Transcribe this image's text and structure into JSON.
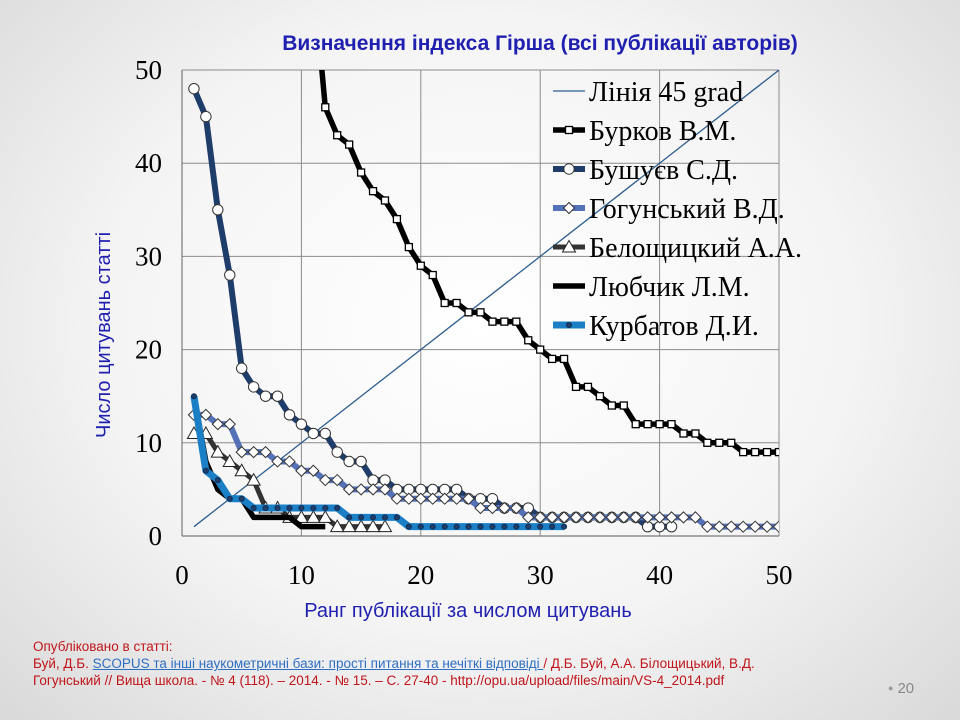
{
  "slide": {
    "page_number": "20",
    "footer": {
      "line1": "Опубліковано   в статті:",
      "line2_pre": "Буй, Д.Б. ",
      "line2_link": "SCOPUS та інші  наукометричні  бази:  прості питання  та нечіткі  відповіді ",
      "line2_post": "  /  Д.Б. Буй, А.А. Білощицький,   В.Д.",
      "line3": "Гогунський  // Вища  школа.  - № 4 (118). – 2014. - № 15. – С. 27-40 - http://opu.ua/upload/files/main/VS-4_2014.pdf"
    }
  },
  "chart_data": {
    "type": "line",
    "title": "Визначення індекса Гірша   (всі публікації авторів)",
    "xlabel": "Ранг публікації за числом цитувань",
    "ylabel": "Число цитувань статті",
    "xlim": [
      0,
      50
    ],
    "ylim": [
      0,
      50
    ],
    "xticks": [
      0,
      10,
      20,
      30,
      40,
      50
    ],
    "yticks": [
      0,
      10,
      20,
      30,
      40,
      50
    ],
    "grid": true,
    "legend_position": "top-right",
    "series": [
      {
        "name": "Лінія 45 grad",
        "color": "#2e5e8e",
        "width": 1.3,
        "marker": "none",
        "x": [
          1,
          50
        ],
        "y": [
          1,
          50
        ]
      },
      {
        "name": "Бурков В.М.",
        "color": "#000000",
        "width": 5.5,
        "marker": "square",
        "marker_fill": "#ffffff",
        "x": [
          11,
          12,
          13,
          14,
          15,
          16,
          17,
          18,
          19,
          20,
          21,
          22,
          23,
          24,
          25,
          26,
          27,
          28,
          29,
          30,
          31,
          32,
          33,
          34,
          35,
          36,
          37,
          38,
          39,
          40,
          41,
          42,
          43,
          44,
          45,
          46,
          47,
          48,
          49,
          50
        ],
        "y": [
          60,
          46,
          43,
          42,
          39,
          37,
          36,
          34,
          31,
          29,
          28,
          25,
          25,
          24,
          24,
          23,
          23,
          23,
          21,
          20,
          19,
          19,
          16,
          16,
          15,
          14,
          14,
          12,
          12,
          12,
          12,
          11,
          11,
          10,
          10,
          10,
          9,
          9,
          9,
          9
        ]
      },
      {
        "name": "Бушуєв С.Д.",
        "color": "#1f3d6b",
        "width": 6,
        "marker": "circle",
        "marker_fill": "#ffffff",
        "x": [
          1,
          2,
          3,
          4,
          5,
          6,
          7,
          8,
          9,
          10,
          11,
          12,
          13,
          14,
          15,
          16,
          17,
          18,
          19,
          20,
          21,
          22,
          23,
          24,
          25,
          26,
          27,
          28,
          29,
          30,
          31,
          32,
          33,
          34,
          35,
          36,
          37,
          38,
          39,
          40,
          41
        ],
        "y": [
          48,
          45,
          35,
          28,
          18,
          16,
          15,
          15,
          13,
          12,
          11,
          11,
          9,
          8,
          8,
          6,
          6,
          5,
          5,
          5,
          5,
          5,
          5,
          4,
          4,
          4,
          3,
          3,
          3,
          2,
          2,
          2,
          2,
          2,
          2,
          2,
          2,
          2,
          1,
          1,
          1
        ]
      },
      {
        "name": "Гогунський В.Д.",
        "color": "#5572b8",
        "width": 6,
        "marker": "diamond",
        "marker_fill": "#ffffff",
        "x": [
          1,
          2,
          3,
          4,
          5,
          6,
          7,
          8,
          9,
          10,
          11,
          12,
          13,
          14,
          15,
          16,
          17,
          18,
          19,
          20,
          21,
          22,
          23,
          24,
          25,
          26,
          27,
          28,
          29,
          30,
          31,
          32,
          33,
          34,
          35,
          36,
          37,
          38,
          39,
          40,
          41,
          42,
          43,
          44,
          45,
          46,
          47,
          48,
          49,
          50
        ],
        "y": [
          13,
          13,
          12,
          12,
          9,
          9,
          9,
          8,
          8,
          7,
          7,
          6,
          6,
          5,
          5,
          5,
          5,
          4,
          4,
          4,
          4,
          4,
          4,
          4,
          3,
          3,
          3,
          3,
          2,
          2,
          2,
          2,
          2,
          2,
          2,
          2,
          2,
          2,
          2,
          2,
          2,
          2,
          2,
          1,
          1,
          1,
          1,
          1,
          1,
          1
        ]
      },
      {
        "name": "Белощицкий А.А.",
        "color": "#333333",
        "width": 5,
        "marker": "triangle",
        "marker_fill": "#ffffff",
        "x": [
          1,
          2,
          3,
          4,
          5,
          6,
          7,
          8,
          9,
          10,
          11,
          12,
          13,
          14,
          15,
          16,
          17
        ],
        "y": [
          11,
          11,
          9,
          8,
          7,
          6,
          3,
          3,
          2,
          2,
          2,
          2,
          1,
          1,
          1,
          1,
          1
        ]
      },
      {
        "name": "Любчик Л.М.",
        "color": "#000000",
        "width": 5.5,
        "marker": "none",
        "x": [
          1,
          2,
          3,
          4,
          5,
          6,
          7,
          8,
          9,
          10,
          11,
          12
        ],
        "y": [
          15,
          8,
          5,
          4,
          4,
          2,
          2,
          2,
          2,
          1,
          1,
          1
        ]
      },
      {
        "name": "Курбатов Д.И.",
        "color": "#1a7fc4",
        "width": 7,
        "marker": "dot",
        "marker_fill": "#1f3d6b",
        "x": [
          1,
          2,
          3,
          4,
          5,
          6,
          7,
          8,
          9,
          10,
          11,
          12,
          13,
          14,
          15,
          16,
          17,
          18,
          19,
          20,
          21,
          22,
          23,
          24,
          25,
          26,
          27,
          28,
          29,
          30,
          31,
          32
        ],
        "y": [
          15,
          7,
          6,
          4,
          4,
          3,
          3,
          3,
          3,
          3,
          3,
          3,
          3,
          2,
          2,
          2,
          2,
          2,
          1,
          1,
          1,
          1,
          1,
          1,
          1,
          1,
          1,
          1,
          1,
          1,
          1,
          1
        ]
      }
    ]
  }
}
